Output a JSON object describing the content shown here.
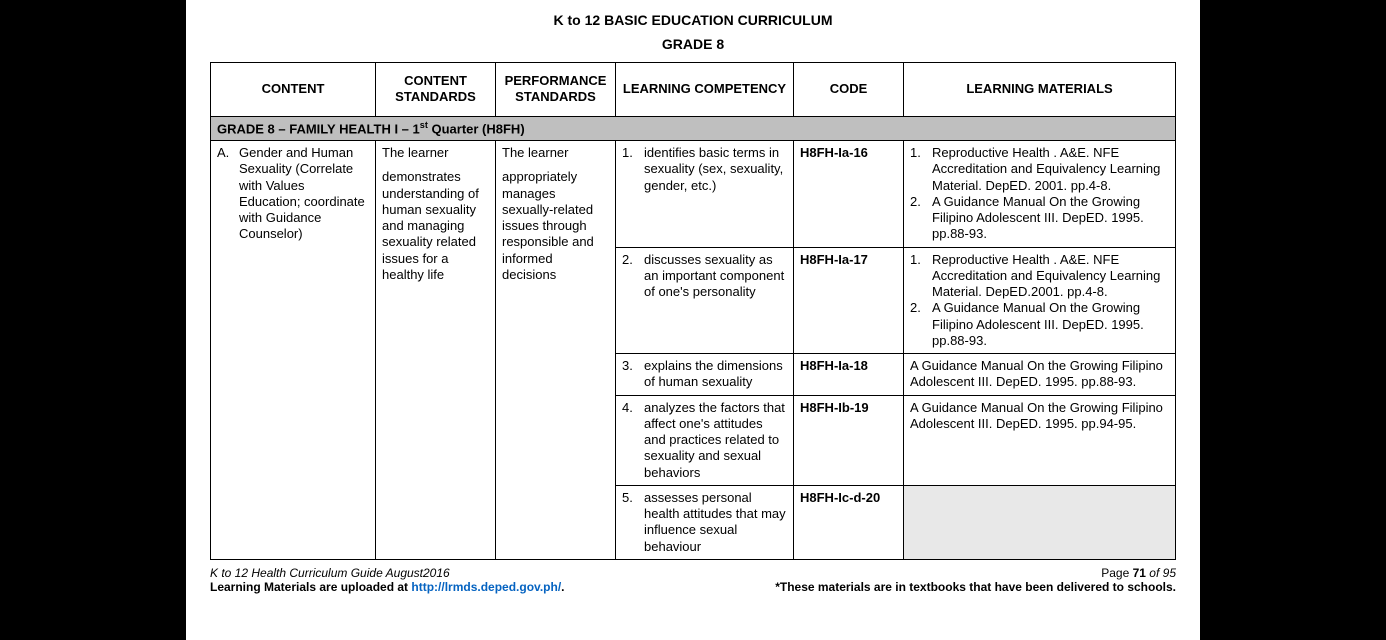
{
  "doc_title": "K to 12 BASIC EDUCATION CURRICULUM",
  "grade_title": "GRADE 8",
  "headers": {
    "content": "CONTENT",
    "content_standards": "CONTENT STANDARDS",
    "performance_standards": "PERFORMANCE STANDARDS",
    "learning_competency": "LEARNING COMPETENCY",
    "code": "CODE",
    "learning_materials": "LEARNING MATERIALS"
  },
  "section_label_prefix": "GRADE 8 – FAMILY HEALTH I – 1",
  "section_label_sup": "st",
  "section_label_suffix": " Quarter (H8FH)",
  "content_letter": "A.",
  "content_text": "Gender and Human Sexuality (Correlate with Values Education; coordinate with Guidance Counselor)",
  "content_standards_text": "The learner\n\ndemonstrates understanding of human sexuality and managing sexuality related issues for a healthy life",
  "performance_standards_text": "The learner\n\nappropriately manages sexually-related issues through responsible and informed decisions",
  "rows": [
    {
      "comp_num": "1.",
      "comp_text": "identifies basic terms in sexuality (sex, sexuality, gender, etc.)",
      "code": "H8FH-Ia-16",
      "materials": [
        {
          "num": "1.",
          "text": "Reproductive Health . A&E. NFE Accreditation and Equivalency Learning Material. DepED. 2001. pp.4-8."
        },
        {
          "num": "2.",
          "text": "A Guidance Manual On the Growing Filipino Adolescent III. DepED. 1995. pp.88-93."
        }
      ]
    },
    {
      "comp_num": "2.",
      "comp_text": "discusses sexuality as an important component of one's personality",
      "code": "H8FH-Ia-17",
      "materials": [
        {
          "num": "1.",
          "text": " Reproductive Health . A&E. NFE Accreditation and Equivalency Learning Material. DepED.2001. pp.4-8."
        },
        {
          "num": "2.",
          "text": "A Guidance Manual On the Growing Filipino Adolescent III. DepED. 1995. pp.88-93."
        }
      ]
    },
    {
      "comp_num": "3.",
      "comp_text": "explains the dimensions of  human sexuality",
      "code": "H8FH-Ia-18",
      "materials_plain": "A Guidance Manual On the Growing Filipino Adolescent III. DepED. 1995. pp.88-93."
    },
    {
      "comp_num": "4.",
      "comp_text": "analyzes the factors that affect one's attitudes and practices related to sexuality and sexual behaviors",
      "code": "H8FH-Ib-19",
      "materials_plain": "A Guidance Manual On the Growing Filipino Adolescent III. DepED. 1995. pp.94-95."
    },
    {
      "comp_num": "5.",
      "comp_text": "assesses personal health attitudes that may influence sexual behaviour",
      "code": "H8FH-Ic-d-20",
      "materials_empty": true
    }
  ],
  "footer": {
    "guide_label": "K to 12 Health Curriculum Guide August2016",
    "page_prefix": "Page ",
    "page_num": "71",
    "page_of": " of 95",
    "upload_prefix": "Learning Materials are uploaded at ",
    "upload_link": "http://lrmds.deped.gov.ph/",
    "upload_suffix": ".",
    "note": "*These materials are in textbooks that have been delivered to schools."
  },
  "colors": {
    "section_bg": "#bfbfbf",
    "empty_bg": "#e8e8e8",
    "link": "#0563c1"
  }
}
